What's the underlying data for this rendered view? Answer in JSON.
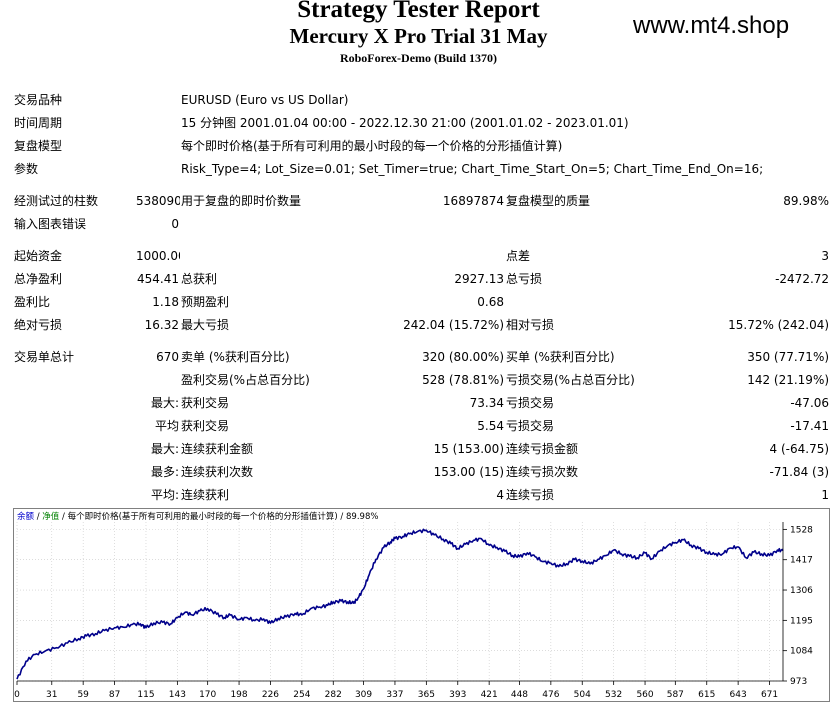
{
  "header": {
    "title": "Strategy Tester Report",
    "subtitle": "Mercury X Pro Trial 31 May",
    "server": "RoboForex-Demo (Build 1370)",
    "site": "www.mt4.shop"
  },
  "settings": {
    "symbol_label": "交易品种",
    "symbol_value": "EURUSD (Euro vs US Dollar)",
    "period_label": "时间周期",
    "period_value": "15 分钟图 2001.01.04 00:00 - 2022.12.30 21:00 (2001.01.02 - 2023.01.01)",
    "model_label": "复盘模型",
    "model_value": "每个即时价格(基于所有可利用的最小时段的每一个价格的分形插值计算)",
    "params_label": "参数",
    "params_value": "Risk_Type=4; Lot_Size=0.01; Set_Timer=true; Chart_Time_Start_On=5; Chart_Time_End_On=16;"
  },
  "quality": {
    "bars_label": "经测试过的柱数",
    "bars_value": "538090",
    "ticks_label": "用于复盘的即时价数量",
    "ticks_value": "16897874",
    "modelq_label": "复盘模型的质量",
    "modelq_value": "89.98%",
    "errors_label": "输入图表错误",
    "errors_value": "0"
  },
  "results": {
    "deposit_label": "起始资金",
    "deposit_value": "1000.00",
    "spread_label": "点差",
    "spread_value": "3",
    "netprofit_label": "总净盈利",
    "netprofit_value": "454.41",
    "grossprofit_label": "总获利",
    "grossprofit_value": "2927.13",
    "grossloss_label": "总亏损",
    "grossloss_value": "-2472.72",
    "pf_label": "盈利比",
    "pf_value": "1.18",
    "payoff_label": "预期盈利",
    "payoff_value": "0.68",
    "absdd_label": "绝对亏损",
    "absdd_value": "16.32",
    "maxdd_label": "最大亏损",
    "maxdd_value": "242.04 (15.72%)",
    "reldd_label": "相对亏损",
    "reldd_value": "15.72% (242.04)"
  },
  "trades": {
    "total_label": "交易单总计",
    "total_value": "670",
    "short_label": "卖单 (%获利百分比)",
    "short_value": "320 (80.00%)",
    "long_label": "买单 (%获利百分比)",
    "long_value": "350 (77.71%)",
    "profit_trades_label": "盈利交易(%占总百分比)",
    "profit_trades_value": "528 (78.81%)",
    "loss_trades_label": "亏损交易(%占总百分比)",
    "loss_trades_value": "142 (21.19%)",
    "max_prefix": "最大:",
    "avg_prefix": "平均",
    "max_prefix2": "最大:",
    "most_prefix": "最多:",
    "avg_prefix2": "平均:",
    "largest_profit_label": "获利交易",
    "largest_profit_value": "73.34",
    "largest_loss_label": "亏损交易",
    "largest_loss_value": "-47.06",
    "avg_profit_label": "获利交易",
    "avg_profit_value": "5.54",
    "avg_loss_label": "亏损交易",
    "avg_loss_value": "-17.41",
    "max_consec_wins_label": "连续获利金额",
    "max_consec_wins_value": "15 (153.00)",
    "max_consec_losses_label": "连续亏损金额",
    "max_consec_losses_value": "4 (-64.75)",
    "max_consec_profit_label": "连续获利次数",
    "max_consec_profit_value": "153.00 (15)",
    "max_consec_loss_label": "连续亏损次数",
    "max_consec_loss_value": "-71.84 (3)",
    "avg_consec_wins_label": "连续获利",
    "avg_consec_wins_value": "4",
    "avg_consec_losses_label": "连续亏损",
    "avg_consec_losses_value": "1"
  },
  "chart_data": {
    "type": "line",
    "legend": {
      "balance": "余额",
      "sep1": " / ",
      "equity": "净值",
      "sep2": " / ",
      "model": "每个即时价格(基于所有可利用的最小时段的每一个价格的分形插值计算)",
      "sep3": " / ",
      "quality": "89.98%"
    },
    "colors": {
      "line": "#00008b",
      "balance_label": "#0000cc",
      "equity_label": "#008000",
      "grid": "#c8c8c8"
    },
    "x_ticks": [
      0,
      31,
      59,
      87,
      115,
      143,
      170,
      198,
      226,
      254,
      282,
      309,
      337,
      365,
      393,
      421,
      448,
      476,
      504,
      532,
      560,
      587,
      615,
      643,
      671
    ],
    "y_ticks": [
      973,
      1084,
      1195,
      1306,
      1417,
      1528
    ],
    "xlim": [
      0,
      683
    ],
    "ylim": [
      973,
      1555
    ],
    "series": [
      {
        "x": [
          0,
          8,
          16,
          25,
          35,
          45,
          55,
          62,
          70,
          78,
          87,
          95,
          103,
          110,
          115,
          122,
          130,
          137,
          143,
          150,
          156,
          163,
          170,
          178,
          185,
          190,
          198,
          205,
          212,
          220,
          226,
          233,
          240,
          248,
          254,
          262,
          270,
          277,
          282,
          289,
          295,
          300,
          304,
          309,
          314,
          320,
          327,
          333,
          337,
          344,
          350,
          357,
          365,
          372,
          380,
          387,
          393,
          400,
          407,
          414,
          421,
          428,
          435,
          442,
          448,
          455,
          462,
          469,
          476,
          483,
          490,
          497,
          504,
          511,
          518,
          525,
          532,
          539,
          546,
          553,
          560,
          566,
          573,
          580,
          587,
          594,
          601,
          608,
          615,
          622,
          629,
          636,
          643,
          650,
          657,
          664,
          671,
          678,
          683
        ],
        "y": [
          980,
          1045,
          1070,
          1082,
          1095,
          1112,
          1128,
          1138,
          1146,
          1158,
          1168,
          1170,
          1180,
          1182,
          1168,
          1185,
          1188,
          1182,
          1205,
          1225,
          1215,
          1230,
          1238,
          1218,
          1205,
          1215,
          1198,
          1205,
          1194,
          1200,
          1185,
          1202,
          1208,
          1220,
          1215,
          1238,
          1244,
          1250,
          1262,
          1266,
          1262,
          1258,
          1276,
          1310,
          1362,
          1418,
          1462,
          1482,
          1495,
          1502,
          1512,
          1520,
          1525,
          1508,
          1492,
          1476,
          1458,
          1474,
          1488,
          1494,
          1470,
          1462,
          1448,
          1432,
          1428,
          1442,
          1428,
          1410,
          1405,
          1392,
          1402,
          1418,
          1412,
          1402,
          1418,
          1432,
          1452,
          1438,
          1430,
          1424,
          1442,
          1420,
          1448,
          1468,
          1480,
          1490,
          1470,
          1458,
          1444,
          1436,
          1438,
          1460,
          1464,
          1424,
          1445,
          1438,
          1432,
          1452,
          1450
        ]
      }
    ]
  }
}
